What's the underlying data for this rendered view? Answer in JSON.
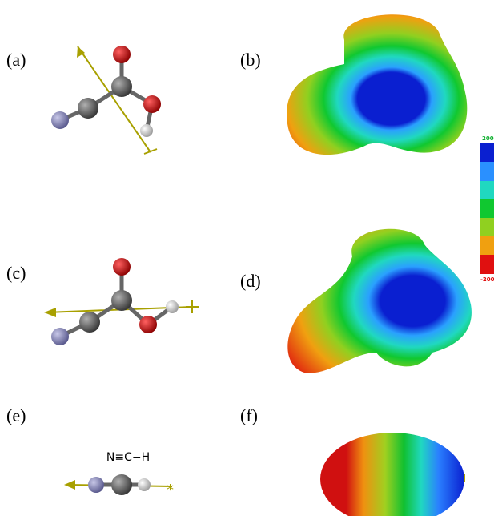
{
  "panels": [
    {
      "label": "(a)"
    },
    {
      "label": "(b)"
    },
    {
      "label": "(c)"
    },
    {
      "label": "(d)"
    },
    {
      "label": "(e)"
    },
    {
      "label": "(f)"
    }
  ],
  "molecule_label": "N≡C−H",
  "colorbar": {
    "max": "200",
    "min": "-200"
  }
}
